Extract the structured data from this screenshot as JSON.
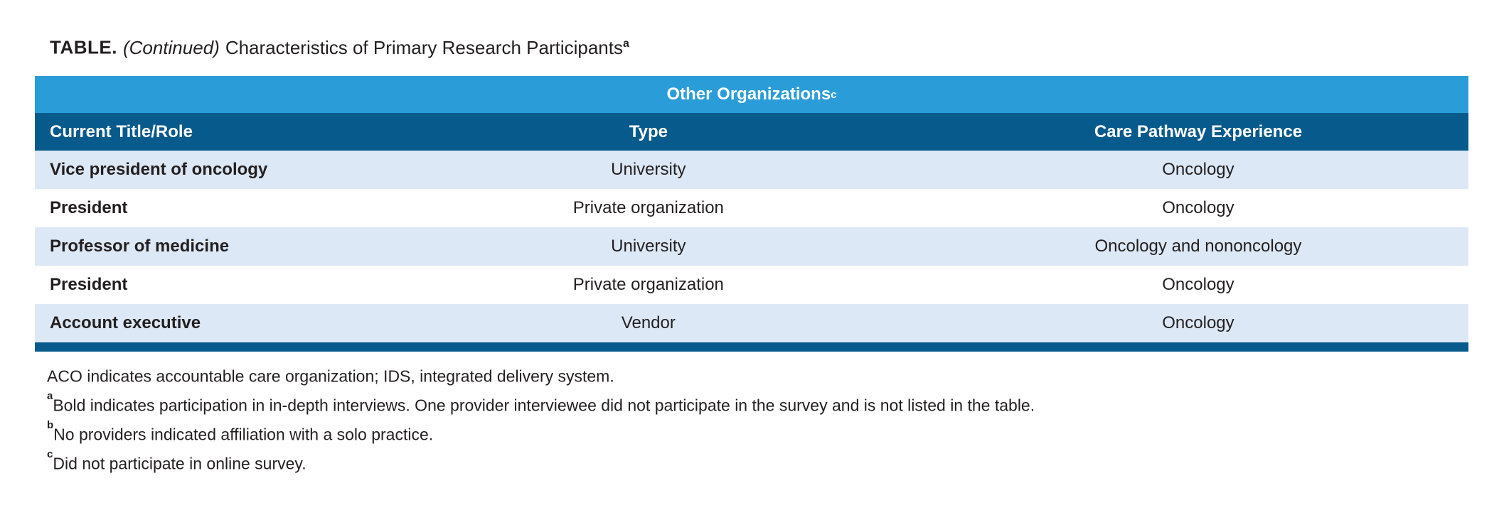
{
  "title": {
    "label": "TABLE.",
    "continued": "(Continued)",
    "text": "Characteristics of Primary Research Participants",
    "superscript": "a"
  },
  "table": {
    "span_header": {
      "text": "Other Organizations",
      "superscript": "c"
    },
    "columns": [
      "Current Title/Role",
      "Type",
      "Care Pathway Experience"
    ],
    "rows": [
      [
        "Vice president of oncology",
        "University",
        "Oncology"
      ],
      [
        "President",
        "Private organization",
        "Oncology"
      ],
      [
        "Professor of medicine",
        "University",
        "Oncology and nononcology"
      ],
      [
        "President",
        "Private organization",
        "Oncology"
      ],
      [
        "Account executive",
        "Vendor",
        "Oncology"
      ]
    ]
  },
  "footnotes": [
    {
      "marker": "",
      "text": "ACO indicates accountable care organization; IDS, integrated delivery system."
    },
    {
      "marker": "a",
      "text": "Bold indicates participation in in-depth interviews. One provider interviewee did not participate in the survey and is not listed in the table."
    },
    {
      "marker": "b",
      "text": "No providers indicated affiliation with a solo practice."
    },
    {
      "marker": "c",
      "text": "Did not participate in online survey."
    }
  ],
  "colors": {
    "band_blue": "#2A9DD9",
    "header_blue": "#075A8C",
    "stripe_blue": "#DCE8F5",
    "text_black": "#231F20"
  }
}
